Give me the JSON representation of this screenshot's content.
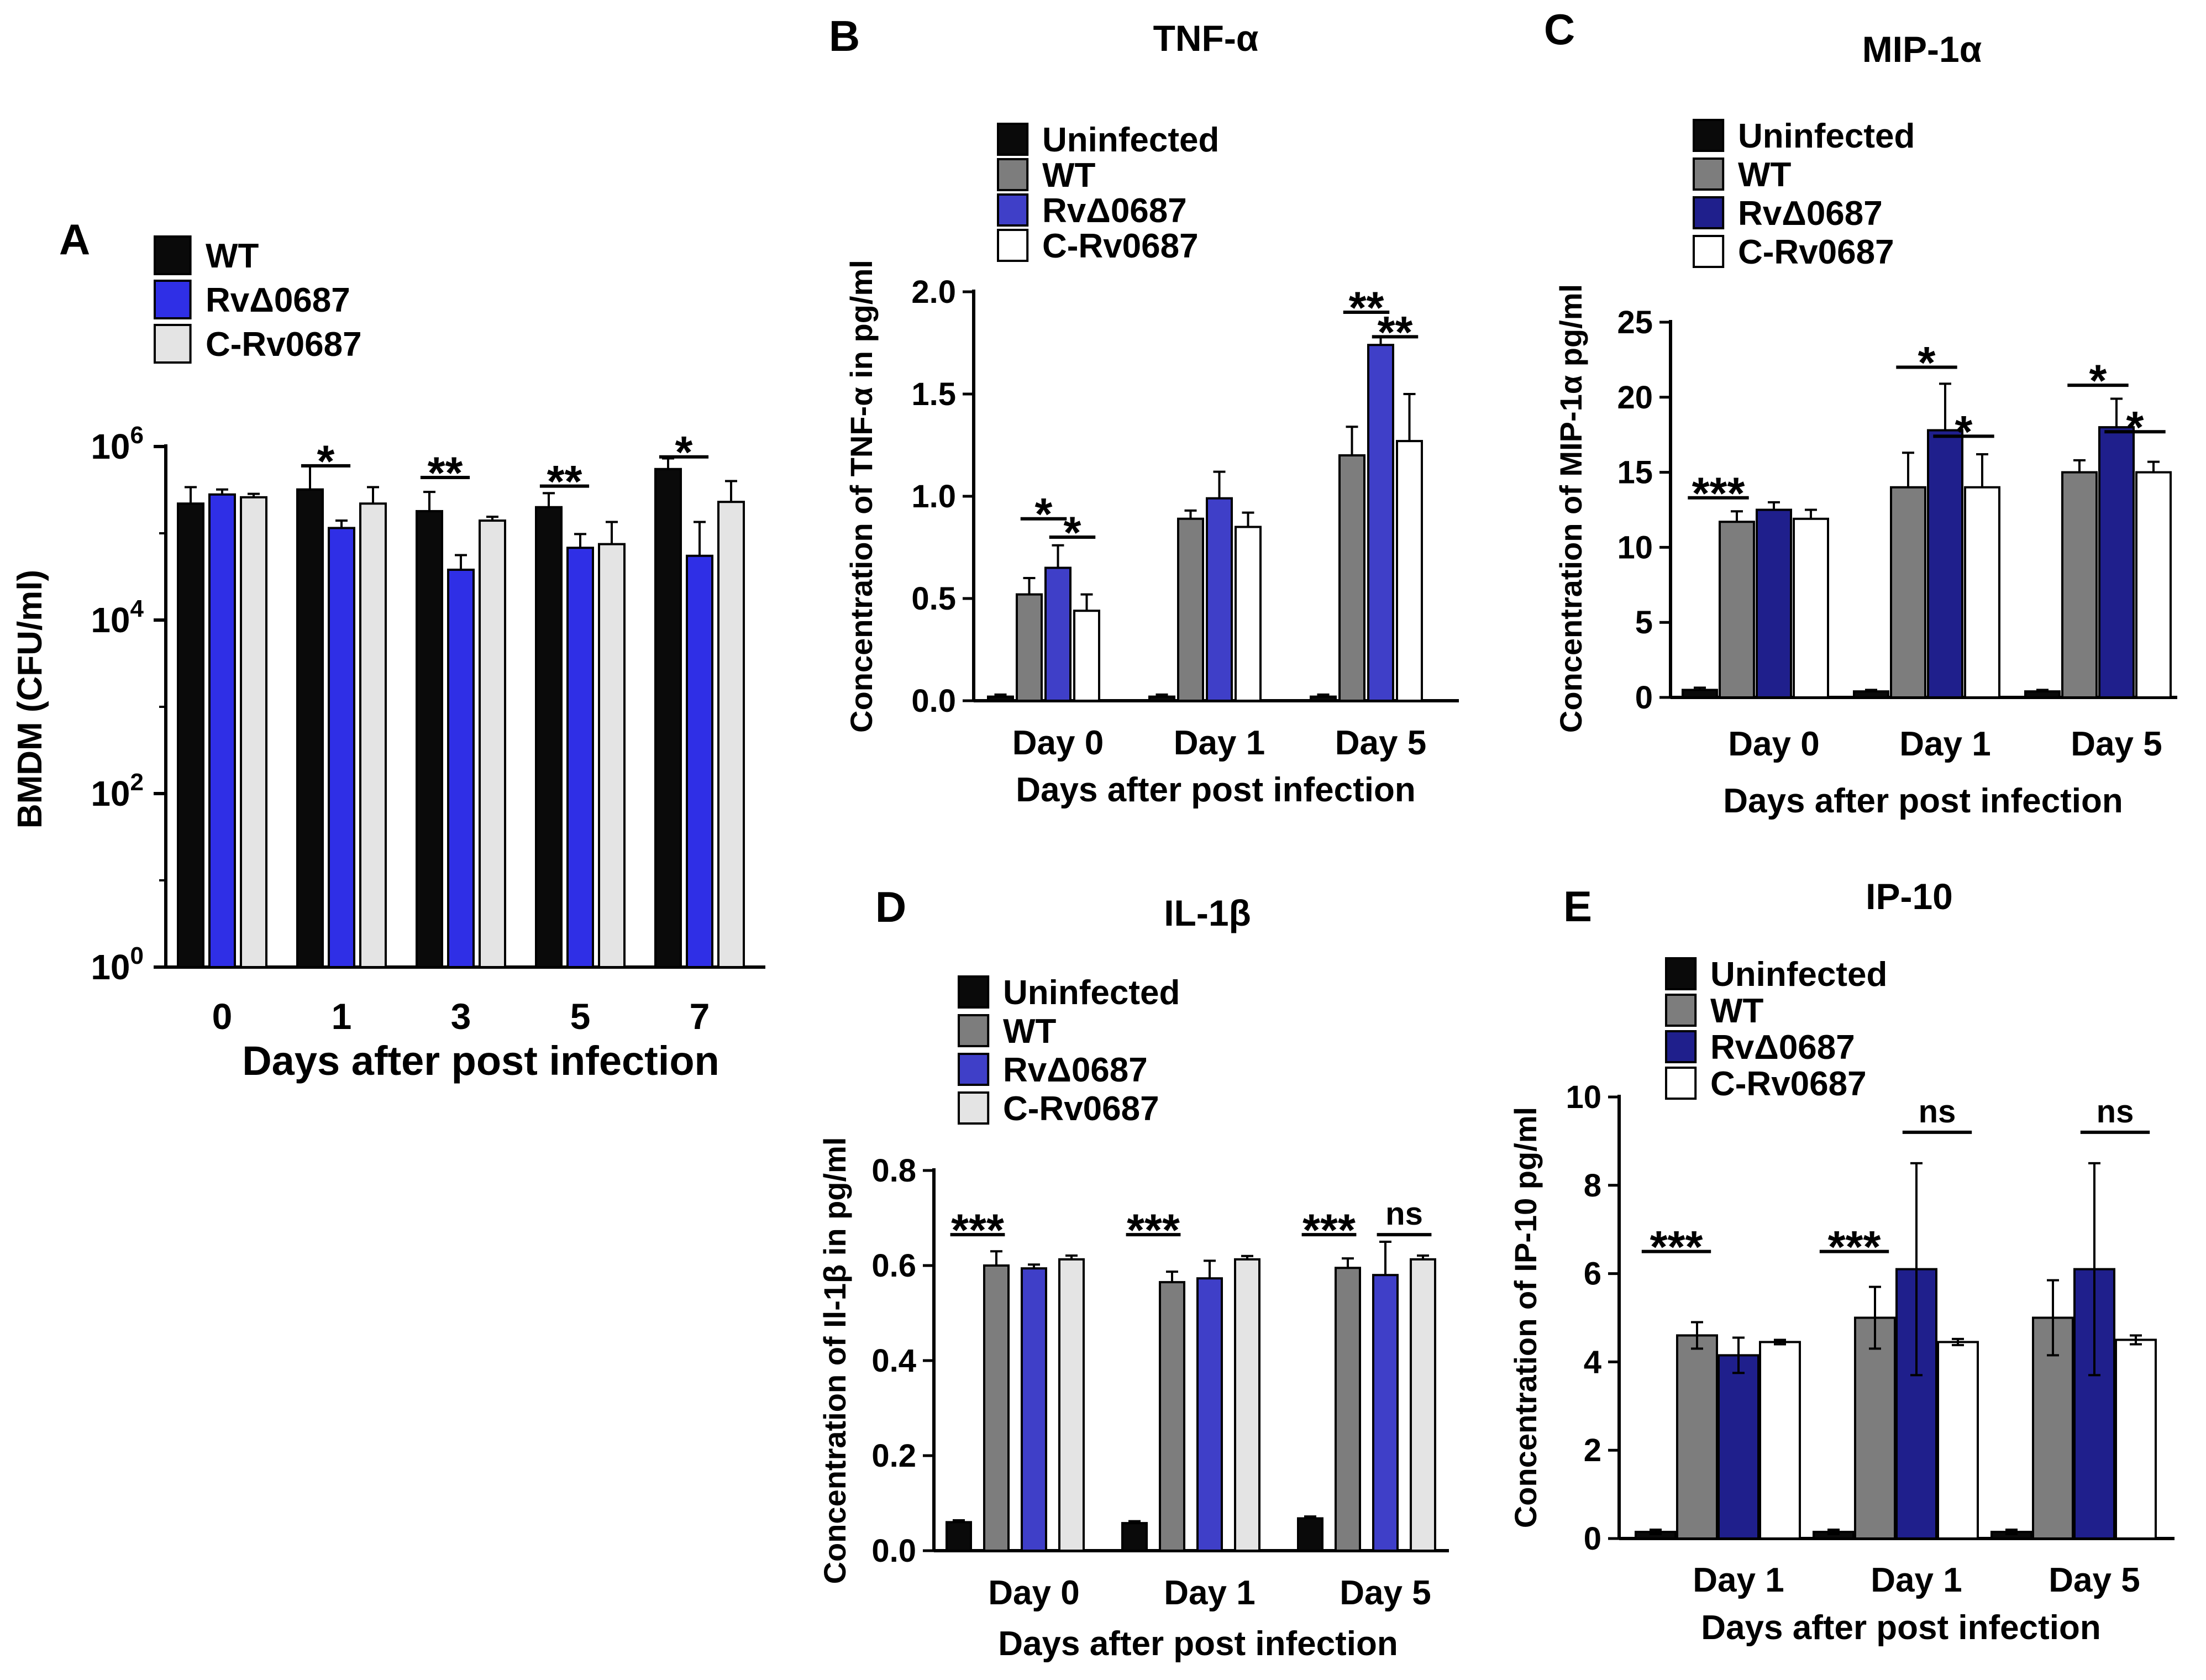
{
  "colors": {
    "black": "#0a0a0a",
    "gray": "#7d7d7d",
    "blue_bright": "#2f2fe6",
    "blue_medium": "#3f3fc8",
    "blue_navy": "#1f1f8c",
    "light_gray": "#e4e4e4",
    "white": "#ffffff"
  },
  "chart_data": [
    {
      "id": "A",
      "panel_label": "A",
      "type": "bar",
      "title": "",
      "xlabel": "Days after post infection",
      "ylabel": "BMDM (CFU/ml)",
      "yscale": "log",
      "ylim": [
        1,
        1000000
      ],
      "yticks": [
        {
          "value": 1,
          "base": "10",
          "exp": "0"
        },
        {
          "value": 100,
          "base": "10",
          "exp": "2"
        },
        {
          "value": 10000,
          "base": "10",
          "exp": "4"
        },
        {
          "value": 1000000,
          "base": "10",
          "exp": "6"
        }
      ],
      "categories": [
        "0",
        "1",
        "3",
        "5",
        "7"
      ],
      "series": [
        {
          "name": "WT",
          "color": "#0a0a0a",
          "values": [
            220000,
            320000,
            180000,
            200000,
            550000
          ],
          "errors": [
            120000,
            280000,
            120000,
            90000,
            180000
          ]
        },
        {
          "name": "RvΔ0687",
          "color": "#2f2fe6",
          "values": [
            280000,
            115000,
            38000,
            68000,
            55000
          ],
          "errors": [
            40000,
            25000,
            18000,
            30000,
            80000
          ]
        },
        {
          "name": "C-Rv0687",
          "color": "#e4e4e4",
          "values": [
            260000,
            220000,
            140000,
            75000,
            230000
          ],
          "errors": [
            25000,
            120000,
            15000,
            60000,
            170000
          ]
        }
      ],
      "significance": [
        {
          "text": "*",
          "category": 1,
          "from_series": 0,
          "to_series": 1,
          "level": 600000
        },
        {
          "text": "**",
          "category": 2,
          "from_series": 0,
          "to_series": 1,
          "level": 440000
        },
        {
          "text": "**",
          "category": 3,
          "from_series": 0,
          "to_series": 1,
          "level": 350000
        },
        {
          "text": "*",
          "category": 4,
          "from_series": 0,
          "to_series": 1,
          "level": 760000
        }
      ],
      "legend": {
        "placement": "top-left"
      }
    },
    {
      "id": "B",
      "panel_label": "B",
      "type": "bar",
      "title": "TNF-α",
      "xlabel": "Days after post infection",
      "ylabel": "Concentration of TNF-α in pg/ml",
      "ylim": [
        0,
        2.0
      ],
      "yticks": [
        "0.0",
        "0.5",
        "1.0",
        "1.5",
        "2.0"
      ],
      "categories": [
        "Day 0",
        "Day 1",
        "Day 5"
      ],
      "series": [
        {
          "name": "Uninfected",
          "color": "#0a0a0a",
          "values": [
            0.02,
            0.02,
            0.02
          ],
          "errors": [
            0.01,
            0.01,
            0.01
          ]
        },
        {
          "name": "WT",
          "color": "#7d7d7d",
          "values": [
            0.52,
            0.89,
            1.2
          ],
          "errors": [
            0.08,
            0.04,
            0.14
          ]
        },
        {
          "name": "RvΔ0687",
          "color": "#3f3fc8",
          "values": [
            0.65,
            0.99,
            1.74
          ],
          "errors": [
            0.11,
            0.13,
            0.04
          ]
        },
        {
          "name": "C-Rv0687",
          "color": "#ffffff",
          "values": [
            0.44,
            0.85,
            1.27
          ],
          "errors": [
            0.08,
            0.07,
            0.23
          ]
        }
      ],
      "significance": [
        {
          "text": "*",
          "category": 0,
          "from_series": 1,
          "to_series": 2,
          "level": 0.89
        },
        {
          "text": "*",
          "category": 0,
          "from_series": 2,
          "to_series": 3,
          "level": 0.8
        },
        {
          "text": "**",
          "category": 2,
          "from_series": 1,
          "to_series": 2,
          "level": 1.9
        },
        {
          "text": "**",
          "category": 2,
          "from_series": 2,
          "to_series": 3,
          "level": 1.78
        }
      ],
      "legend": {
        "placement": "top-left"
      }
    },
    {
      "id": "C",
      "panel_label": "C",
      "type": "bar",
      "title": "MIP-1α",
      "xlabel": "Days after post infection",
      "ylabel": "Concentration of MIP-1α pg/ml",
      "ylim": [
        0,
        25
      ],
      "yticks": [
        "0",
        "5",
        "10",
        "15",
        "20",
        "25"
      ],
      "categories": [
        "Day 0",
        "Day 1",
        "Day 5"
      ],
      "series": [
        {
          "name": "Uninfected",
          "color": "#0a0a0a",
          "values": [
            0.5,
            0.4,
            0.4
          ],
          "errors": [
            0.15,
            0.1,
            0.1
          ]
        },
        {
          "name": "WT",
          "color": "#7d7d7d",
          "values": [
            11.7,
            14,
            15
          ],
          "errors": [
            0.7,
            2.3,
            0.8
          ]
        },
        {
          "name": "RvΔ0687",
          "color": "#1f1f8c",
          "values": [
            12.5,
            17.8,
            18
          ],
          "errors": [
            0.5,
            3.1,
            1.9
          ]
        },
        {
          "name": "C-Rv0687",
          "color": "#ffffff",
          "values": [
            11.9,
            14,
            15
          ],
          "errors": [
            0.6,
            2.2,
            0.7
          ]
        }
      ],
      "significance": [
        {
          "text": "***",
          "category": 0,
          "from_series": 0,
          "to_series": 1,
          "level": 13.3
        },
        {
          "text": "*",
          "category": 1,
          "from_series": 1,
          "to_series": 2,
          "level": 22
        },
        {
          "text": "*",
          "category": 1,
          "from_series": 2,
          "to_series": 3,
          "level": 17.4
        },
        {
          "text": "*",
          "category": 2,
          "from_series": 1,
          "to_series": 2,
          "level": 20.8
        },
        {
          "text": "*",
          "category": 2,
          "from_series": 2,
          "to_series": 3,
          "level": 17.7
        }
      ],
      "legend": {
        "placement": "top-left"
      }
    },
    {
      "id": "D",
      "panel_label": "D",
      "type": "bar",
      "title": "IL-1β",
      "xlabel": "Days after post infection",
      "ylabel": "Concentration of Il-1β in pg/ml",
      "ylim": [
        0,
        0.8
      ],
      "yticks": [
        "0.0",
        "0.2",
        "0.4",
        "0.6",
        "0.8"
      ],
      "categories": [
        "Day 0",
        "Day 1",
        "Day 5"
      ],
      "series": [
        {
          "name": "Uninfected",
          "color": "#0a0a0a",
          "values": [
            0.06,
            0.058,
            0.068
          ],
          "errors": [
            0.004,
            0.004,
            0.004
          ]
        },
        {
          "name": "WT",
          "color": "#7d7d7d",
          "values": [
            0.6,
            0.565,
            0.595
          ],
          "errors": [
            0.03,
            0.022,
            0.02
          ]
        },
        {
          "name": "RvΔ0687",
          "color": "#3f3fc8",
          "values": [
            0.594,
            0.573,
            0.58
          ],
          "errors": [
            0.008,
            0.037,
            0.07
          ]
        },
        {
          "name": "C-Rv0687",
          "color": "#e4e4e4",
          "values": [
            0.613,
            0.613,
            0.613
          ],
          "errors": [
            0.008,
            0.007,
            0.008
          ]
        }
      ],
      "significance": [
        {
          "text": "***",
          "category": 0,
          "from_series": 0,
          "to_series": 1,
          "level": 0.665
        },
        {
          "text": "***",
          "category": 1,
          "from_series": 0,
          "to_series": 1,
          "level": 0.665
        },
        {
          "text": "***",
          "category": 2,
          "from_series": 0,
          "to_series": 1,
          "level": 0.665
        },
        {
          "text": "ns",
          "category": 2,
          "from_series": 2,
          "to_series": 3,
          "level": 0.665
        }
      ],
      "legend": {
        "placement": "top-left"
      }
    },
    {
      "id": "E",
      "panel_label": "E",
      "type": "bar",
      "title": "IP-10",
      "xlabel": "Days after post infection",
      "ylabel": "Concentration of IP-10 pg/ml",
      "ylim": [
        0,
        10
      ],
      "yticks": [
        "0",
        "2",
        "4",
        "6",
        "8",
        "10"
      ],
      "categories": [
        "Day 1",
        "Day 1",
        "Day 5"
      ],
      "series": [
        {
          "name": "Uninfected",
          "color": "#0a0a0a",
          "values": [
            0.15,
            0.15,
            0.15
          ],
          "errors": [
            0.05,
            0.05,
            0.05
          ]
        },
        {
          "name": "WT",
          "color": "#7d7d7d",
          "values": [
            4.6,
            5,
            5
          ],
          "errors": [
            0.3,
            0.7,
            0.85
          ]
        },
        {
          "name": "RvΔ0687",
          "color": "#1f1f8c",
          "values": [
            4.15,
            6.1,
            6.1
          ],
          "errors": [
            0.4,
            2.4,
            2.4
          ]
        },
        {
          "name": "C-Rv0687",
          "color": "#ffffff",
          "values": [
            4.45,
            4.45,
            4.5
          ],
          "errors": [
            0.05,
            0.07,
            0.1
          ]
        }
      ],
      "significance": [
        {
          "text": "***",
          "category": 0,
          "from_series": 0,
          "to_series": 1,
          "level": 6.5
        },
        {
          "text": "***",
          "category": 1,
          "from_series": 0,
          "to_series": 1,
          "level": 6.5
        },
        {
          "text": "ns",
          "category": 1,
          "from_series": 2,
          "to_series": 3,
          "level": 9.2
        },
        {
          "text": "ns",
          "category": 2,
          "from_series": 2,
          "to_series": 3,
          "level": 9.2
        }
      ],
      "legend": {
        "placement": "top-left"
      }
    }
  ]
}
